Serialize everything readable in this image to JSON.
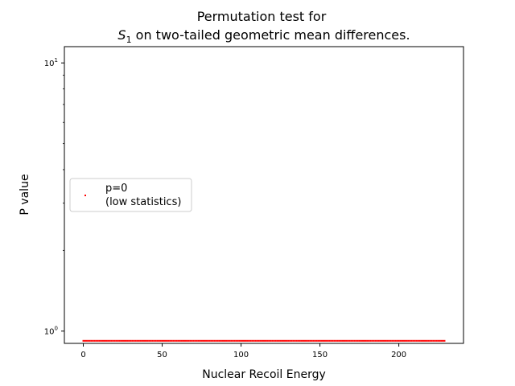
{
  "chart_data": {
    "type": "scatter",
    "title_line1": "Permutation test for",
    "title_s": "S",
    "title_sub": "1",
    "title_rest": " on two-tailed geometric mean differences.",
    "xlabel": "Nuclear Recoil Energy",
    "ylabel": "P value",
    "xlim": [
      -12,
      241
    ],
    "ylim": [
      0.9,
      11.5
    ],
    "yscale": "log",
    "grid": false,
    "legend_position": "center-left",
    "x_ticks": [
      0,
      50,
      100,
      150,
      200
    ],
    "x_tick_labels": [
      "0",
      "50",
      "100",
      "150",
      "200"
    ],
    "y_major_ticks": [
      1,
      10
    ],
    "y_tick_labels": [
      {
        "base": "10",
        "exp": "0"
      },
      {
        "base": "10",
        "exp": "1"
      }
    ],
    "y_minor_ticks": [
      2,
      3,
      4,
      5,
      6,
      7,
      8,
      9
    ],
    "series": [
      {
        "name_line1": "p=0",
        "name_line2": "(low statistics)",
        "color": "#ff0000",
        "marker": "square",
        "x_range": [
          0,
          229
        ],
        "x_step": 1,
        "y": 0.92
      }
    ]
  }
}
